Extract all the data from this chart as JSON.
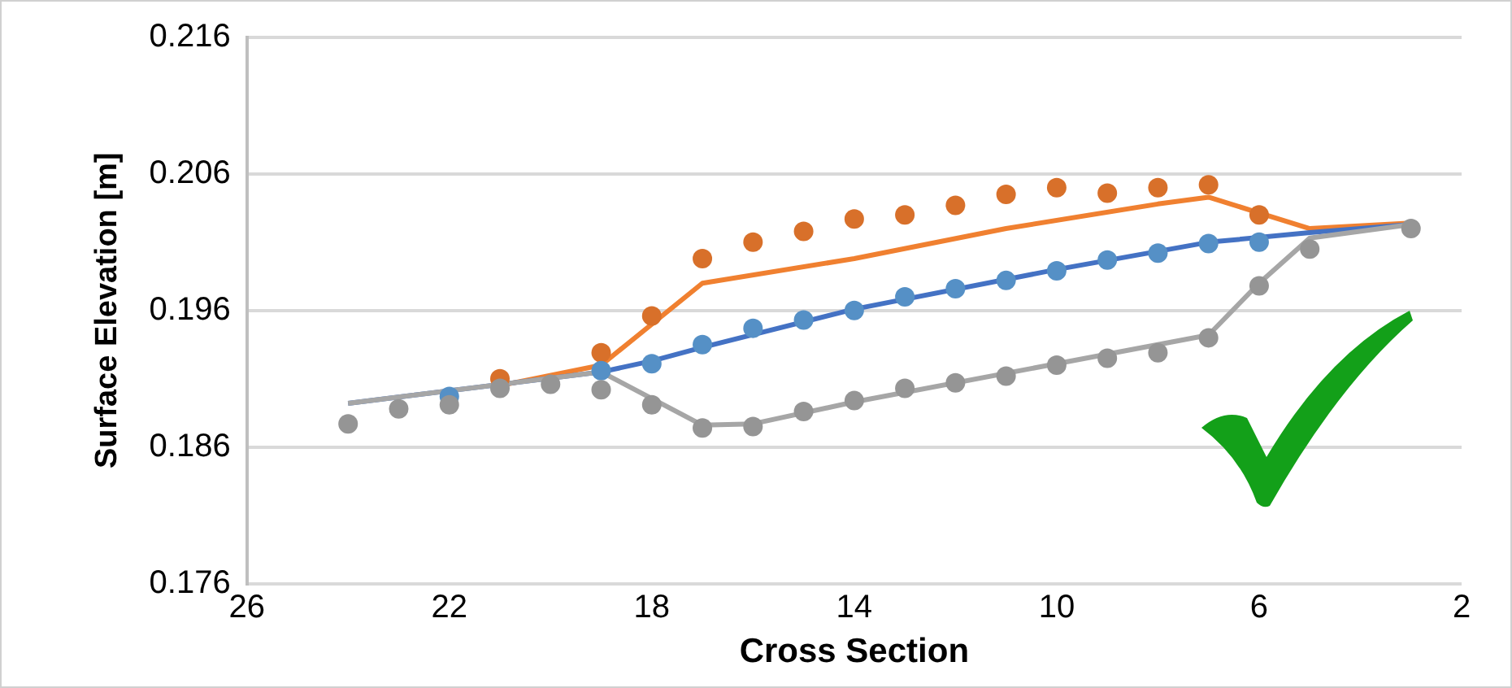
{
  "chart_data": {
    "type": "line",
    "xlabel": "Cross Section",
    "ylabel": "Surface Elevation [m]",
    "xlim": [
      26,
      2
    ],
    "xticks": [
      26,
      22,
      18,
      14,
      10,
      6,
      2
    ],
    "ylim": [
      0.176,
      0.216
    ],
    "yticks": [
      0.176,
      0.186,
      0.196,
      0.206,
      0.216
    ],
    "grid": "y",
    "legend": false,
    "series": [
      {
        "type": "line",
        "color": "#f08030",
        "x": [
          21,
          19,
          17,
          14,
          11,
          8,
          7,
          5,
          3
        ],
        "values": [
          0.1905,
          0.192,
          0.198,
          0.1998,
          0.202,
          0.2038,
          0.2043,
          0.202,
          0.2024
        ]
      },
      {
        "type": "line",
        "color": "#4472c4",
        "x": [
          24,
          19,
          18,
          17,
          14,
          10,
          7,
          5,
          3
        ],
        "values": [
          0.1892,
          0.1915,
          0.1923,
          0.1933,
          0.1961,
          0.199,
          0.201,
          0.2017,
          0.2023
        ]
      },
      {
        "type": "line",
        "color": "#a6a6a6",
        "x": [
          24,
          19,
          17,
          16,
          14,
          7,
          6,
          5,
          3
        ],
        "values": [
          0.1892,
          0.1915,
          0.1876,
          0.1877,
          0.1893,
          0.1942,
          0.198,
          0.2013,
          0.2023
        ]
      },
      {
        "type": "scatter",
        "color": "#d8702a",
        "x": [
          21,
          19,
          18,
          17,
          16,
          15,
          14,
          13,
          12,
          11,
          10,
          9,
          8,
          7,
          6
        ],
        "values": [
          0.191,
          0.1929,
          0.1956,
          0.1998,
          0.201,
          0.2018,
          0.2027,
          0.203,
          0.2037,
          0.2045,
          0.205,
          0.2046,
          0.205,
          0.2052,
          0.203
        ]
      },
      {
        "type": "scatter",
        "color": "#5590c6",
        "x": [
          22,
          19,
          18,
          17,
          16,
          15,
          14,
          13,
          12,
          11,
          10,
          9,
          8,
          7,
          6
        ],
        "values": [
          0.1897,
          0.1916,
          0.1921,
          0.1935,
          0.1947,
          0.1953,
          0.196,
          0.197,
          0.1976,
          0.1982,
          0.1989,
          0.1997,
          0.2002,
          0.2009,
          0.201
        ]
      },
      {
        "type": "scatter",
        "color": "#959595",
        "x": [
          24,
          23,
          22,
          21,
          20,
          19,
          18,
          17,
          16,
          15,
          14,
          13,
          12,
          11,
          10,
          9,
          8,
          7,
          6,
          5,
          3
        ],
        "values": [
          0.1877,
          0.1888,
          0.1891,
          0.1903,
          0.1906,
          0.1902,
          0.1891,
          0.1874,
          0.1875,
          0.1886,
          0.1894,
          0.1903,
          0.1907,
          0.1912,
          0.192,
          0.1925,
          0.1929,
          0.194,
          0.1978,
          0.2005,
          0.202
        ]
      }
    ]
  }
}
